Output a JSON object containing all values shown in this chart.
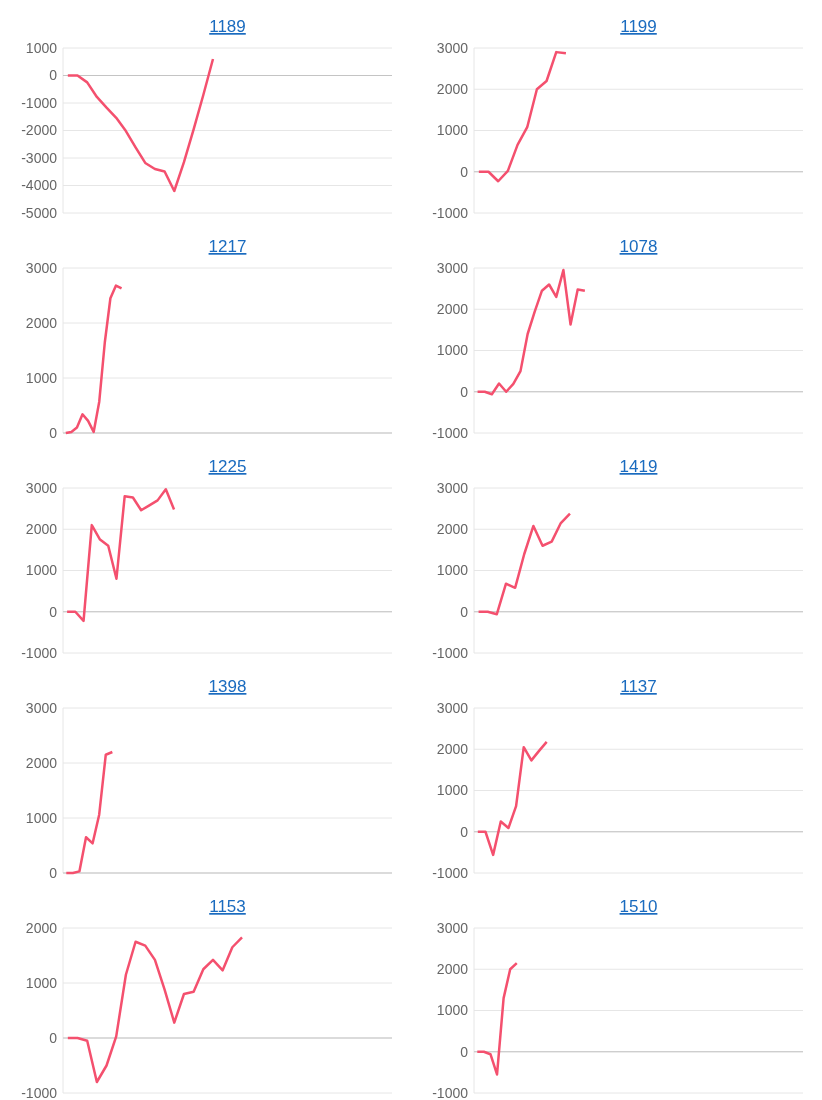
{
  "chart_data": [
    {
      "type": "line",
      "title": "1189",
      "color": "#f4506e",
      "ylim": [
        -5000,
        1000
      ],
      "yticks": [
        -5000,
        -4000,
        -3000,
        -2000,
        -1000,
        0,
        1000
      ],
      "grid": "y",
      "categories": [
        null,
        null,
        null,
        null,
        null,
        null,
        null,
        null,
        null,
        null,
        null,
        null,
        null,
        null,
        null,
        null,
        null,
        null,
        null,
        null,
        null,
        null,
        null,
        null,
        null,
        null,
        null,
        null,
        null,
        null,
        null,
        null,
        null,
        null
      ],
      "values": [
        0,
        0,
        -250,
        -780,
        -1170,
        -1540,
        -2020,
        -2610,
        -3180,
        -3400,
        -3490,
        -4200,
        -3150,
        -1960,
        -710,
        600,
        null,
        null,
        null,
        null,
        null,
        null,
        null,
        null,
        null,
        null,
        null,
        null,
        null,
        null,
        null,
        null,
        null,
        null
      ]
    },
    {
      "type": "line",
      "title": "1199",
      "color": "#f4506e",
      "ylim": [
        -1000,
        3000
      ],
      "yticks": [
        -1000,
        0,
        1000,
        2000,
        3000
      ],
      "grid": "y",
      "categories": [
        null,
        null,
        null,
        null,
        null,
        null,
        null,
        null,
        null,
        null,
        null,
        null,
        null,
        null,
        null,
        null,
        null,
        null,
        null,
        null,
        null,
        null,
        null,
        null,
        null,
        null,
        null,
        null,
        null,
        null,
        null,
        null,
        null,
        null
      ],
      "values": [
        0,
        0,
        -230,
        20,
        650,
        1080,
        2000,
        2200,
        2900,
        2870,
        null,
        null,
        null,
        null,
        null,
        null,
        null,
        null,
        null,
        null,
        null,
        null,
        null,
        null,
        null,
        null,
        null,
        null,
        null,
        null,
        null,
        null,
        null,
        null
      ]
    },
    {
      "type": "line",
      "title": "1217",
      "color": "#f4506e",
      "ylim": [
        0,
        3000
      ],
      "yticks": [
        0,
        1000,
        2000,
        3000
      ],
      "grid": "y",
      "categories": [
        null,
        null,
        null,
        null,
        null,
        null,
        null,
        null,
        null,
        null,
        null,
        null,
        null,
        null,
        null,
        null,
        null,
        null,
        null,
        null,
        null,
        null,
        null,
        null,
        null,
        null,
        null,
        null,
        null,
        null,
        null,
        null,
        null,
        null,
        null,
        null,
        null,
        null,
        null,
        null,
        null,
        null,
        null,
        null,
        null,
        null,
        null,
        null,
        null,
        null,
        null,
        null,
        null,
        null,
        null,
        null,
        null,
        null,
        null
      ],
      "values": [
        0,
        20,
        100,
        340,
        220,
        20,
        570,
        1650,
        2450,
        2680,
        2630,
        null,
        null,
        null,
        null,
        null,
        null,
        null,
        null,
        null,
        null,
        null,
        null,
        null,
        null,
        null,
        null,
        null,
        null,
        null,
        null,
        null,
        null,
        null,
        null,
        null,
        null,
        null,
        null,
        null,
        null,
        null,
        null,
        null,
        null,
        null,
        null,
        null,
        null,
        null,
        null,
        null,
        null,
        null,
        null,
        null,
        null,
        null,
        null
      ]
    },
    {
      "type": "line",
      "title": "1078",
      "color": "#f4506e",
      "ylim": [
        -1000,
        3000
      ],
      "yticks": [
        -1000,
        0,
        1000,
        2000,
        3000
      ],
      "grid": "y",
      "categories": [
        null,
        null,
        null,
        null,
        null,
        null,
        null,
        null,
        null,
        null,
        null,
        null,
        null,
        null,
        null,
        null,
        null,
        null,
        null,
        null,
        null,
        null,
        null,
        null,
        null,
        null,
        null,
        null,
        null,
        null,
        null,
        null,
        null,
        null,
        null,
        null,
        null,
        null,
        null,
        null,
        null,
        null,
        null,
        null,
        null,
        null
      ],
      "values": [
        0,
        0,
        -60,
        200,
        0,
        190,
        500,
        1400,
        1950,
        2450,
        2600,
        2300,
        2950,
        1630,
        2480,
        2450,
        null,
        null,
        null,
        null,
        null,
        null,
        null,
        null,
        null,
        null,
        null,
        null,
        null,
        null,
        null,
        null,
        null,
        null,
        null,
        null,
        null,
        null,
        null,
        null,
        null,
        null,
        null,
        null,
        null,
        null
      ]
    },
    {
      "type": "line",
      "title": "1225",
      "color": "#f4506e",
      "ylim": [
        -1000,
        3000
      ],
      "yticks": [
        -1000,
        0,
        1000,
        2000,
        3000
      ],
      "grid": "y",
      "categories": [
        null,
        null,
        null,
        null,
        null,
        null,
        null,
        null,
        null,
        null,
        null,
        null,
        null,
        null,
        null,
        null,
        null,
        null,
        null,
        null,
        null,
        null,
        null,
        null,
        null,
        null,
        null,
        null,
        null,
        null,
        null,
        null,
        null,
        null,
        null,
        null,
        null,
        null,
        null,
        null
      ],
      "values": [
        0,
        0,
        -220,
        2100,
        1750,
        1600,
        800,
        2800,
        2770,
        2460,
        2580,
        2700,
        2970,
        2480,
        null,
        null,
        null,
        null,
        null,
        null,
        null,
        null,
        null,
        null,
        null,
        null,
        null,
        null,
        null,
        null,
        null,
        null,
        null,
        null,
        null,
        null,
        null,
        null,
        null,
        null
      ]
    },
    {
      "type": "line",
      "title": "1419",
      "color": "#f4506e",
      "ylim": [
        -1000,
        3000
      ],
      "yticks": [
        -1000,
        0,
        1000,
        2000,
        3000
      ],
      "grid": "y",
      "categories": [
        null,
        null,
        null,
        null,
        null,
        null,
        null,
        null,
        null,
        null,
        null,
        null,
        null,
        null,
        null,
        null,
        null,
        null,
        null,
        null,
        null,
        null,
        null,
        null,
        null,
        null,
        null,
        null,
        null,
        null,
        null,
        null,
        null,
        null,
        null,
        null
      ],
      "values": [
        0,
        0,
        -60,
        680,
        580,
        1400,
        2080,
        1600,
        1700,
        2150,
        2380,
        null,
        null,
        null,
        null,
        null,
        null,
        null,
        null,
        null,
        null,
        null,
        null,
        null,
        null,
        null,
        null,
        null,
        null,
        null,
        null,
        null,
        null,
        null,
        null,
        null
      ]
    },
    {
      "type": "line",
      "title": "1398",
      "color": "#f4506e",
      "ylim": [
        0,
        3000
      ],
      "yticks": [
        0,
        1000,
        2000,
        3000
      ],
      "grid": "y",
      "categories": [
        null,
        null,
        null,
        null,
        null,
        null,
        null,
        null,
        null,
        null,
        null,
        null,
        null,
        null,
        null,
        null,
        null,
        null,
        null,
        null,
        null,
        null,
        null,
        null,
        null,
        null,
        null,
        null,
        null,
        null,
        null,
        null,
        null,
        null,
        null,
        null,
        null,
        null,
        null,
        null,
        null,
        null,
        null,
        null,
        null,
        null,
        null,
        null,
        null,
        null
      ],
      "values": [
        0,
        0,
        30,
        650,
        540,
        1060,
        2150,
        2200,
        null,
        null,
        null,
        null,
        null,
        null,
        null,
        null,
        null,
        null,
        null,
        null,
        null,
        null,
        null,
        null,
        null,
        null,
        null,
        null,
        null,
        null,
        null,
        null,
        null,
        null,
        null,
        null,
        null,
        null,
        null,
        null,
        null,
        null,
        null,
        null,
        null,
        null,
        null,
        null,
        null,
        null
      ]
    },
    {
      "type": "line",
      "title": "1137",
      "color": "#f4506e",
      "ylim": [
        -1000,
        3000
      ],
      "yticks": [
        -1000,
        0,
        1000,
        2000,
        3000
      ],
      "grid": "y",
      "categories": [
        null,
        null,
        null,
        null,
        null,
        null,
        null,
        null,
        null,
        null,
        null,
        null,
        null,
        null,
        null,
        null,
        null,
        null,
        null,
        null,
        null,
        null,
        null,
        null,
        null,
        null,
        null,
        null,
        null,
        null,
        null,
        null,
        null,
        null,
        null,
        null,
        null,
        null,
        null,
        null,
        null,
        null,
        null
      ],
      "values": [
        0,
        0,
        -560,
        250,
        90,
        620,
        2050,
        1730,
        1960,
        2180,
        null,
        null,
        null,
        null,
        null,
        null,
        null,
        null,
        null,
        null,
        null,
        null,
        null,
        null,
        null,
        null,
        null,
        null,
        null,
        null,
        null,
        null,
        null,
        null,
        null,
        null,
        null,
        null,
        null,
        null,
        null,
        null,
        null
      ]
    },
    {
      "type": "line",
      "title": "1153",
      "color": "#f4506e",
      "ylim": [
        -1000,
        2000
      ],
      "yticks": [
        -1000,
        0,
        1000,
        2000
      ],
      "grid": "y",
      "categories": [
        null,
        null,
        null,
        null,
        null,
        null,
        null,
        null,
        null,
        null,
        null,
        null,
        null,
        null,
        null,
        null,
        null,
        null,
        null,
        null,
        null,
        null,
        null,
        null,
        null,
        null,
        null,
        null,
        null,
        null,
        null,
        null,
        null,
        null
      ],
      "values": [
        0,
        0,
        -50,
        -800,
        -500,
        30,
        1150,
        1750,
        1680,
        1420,
        880,
        280,
        800,
        840,
        1250,
        1420,
        1230,
        1650,
        1830,
        null,
        null,
        null,
        null,
        null,
        null,
        null,
        null,
        null,
        null,
        null,
        null,
        null,
        null,
        null
      ]
    },
    {
      "type": "line",
      "title": "1510",
      "color": "#f4506e",
      "ylim": [
        -1000,
        3000
      ],
      "yticks": [
        -1000,
        0,
        1000,
        2000,
        3000
      ],
      "grid": "y",
      "categories": [
        null,
        null,
        null,
        null,
        null,
        null,
        null,
        null,
        null,
        null,
        null,
        null,
        null,
        null,
        null,
        null,
        null,
        null,
        null,
        null,
        null,
        null,
        null,
        null,
        null,
        null,
        null,
        null,
        null,
        null,
        null,
        null,
        null,
        null,
        null,
        null,
        null,
        null,
        null,
        null,
        null,
        null,
        null,
        null,
        null,
        null,
        null,
        null,
        null,
        null
      ],
      "values": [
        0,
        0,
        -60,
        -550,
        1300,
        2000,
        2150,
        null,
        null,
        null,
        null,
        null,
        null,
        null,
        null,
        null,
        null,
        null,
        null,
        null,
        null,
        null,
        null,
        null,
        null,
        null,
        null,
        null,
        null,
        null,
        null,
        null,
        null,
        null,
        null,
        null,
        null,
        null,
        null,
        null,
        null,
        null,
        null,
        null,
        null,
        null,
        null,
        null,
        null,
        null
      ]
    }
  ]
}
